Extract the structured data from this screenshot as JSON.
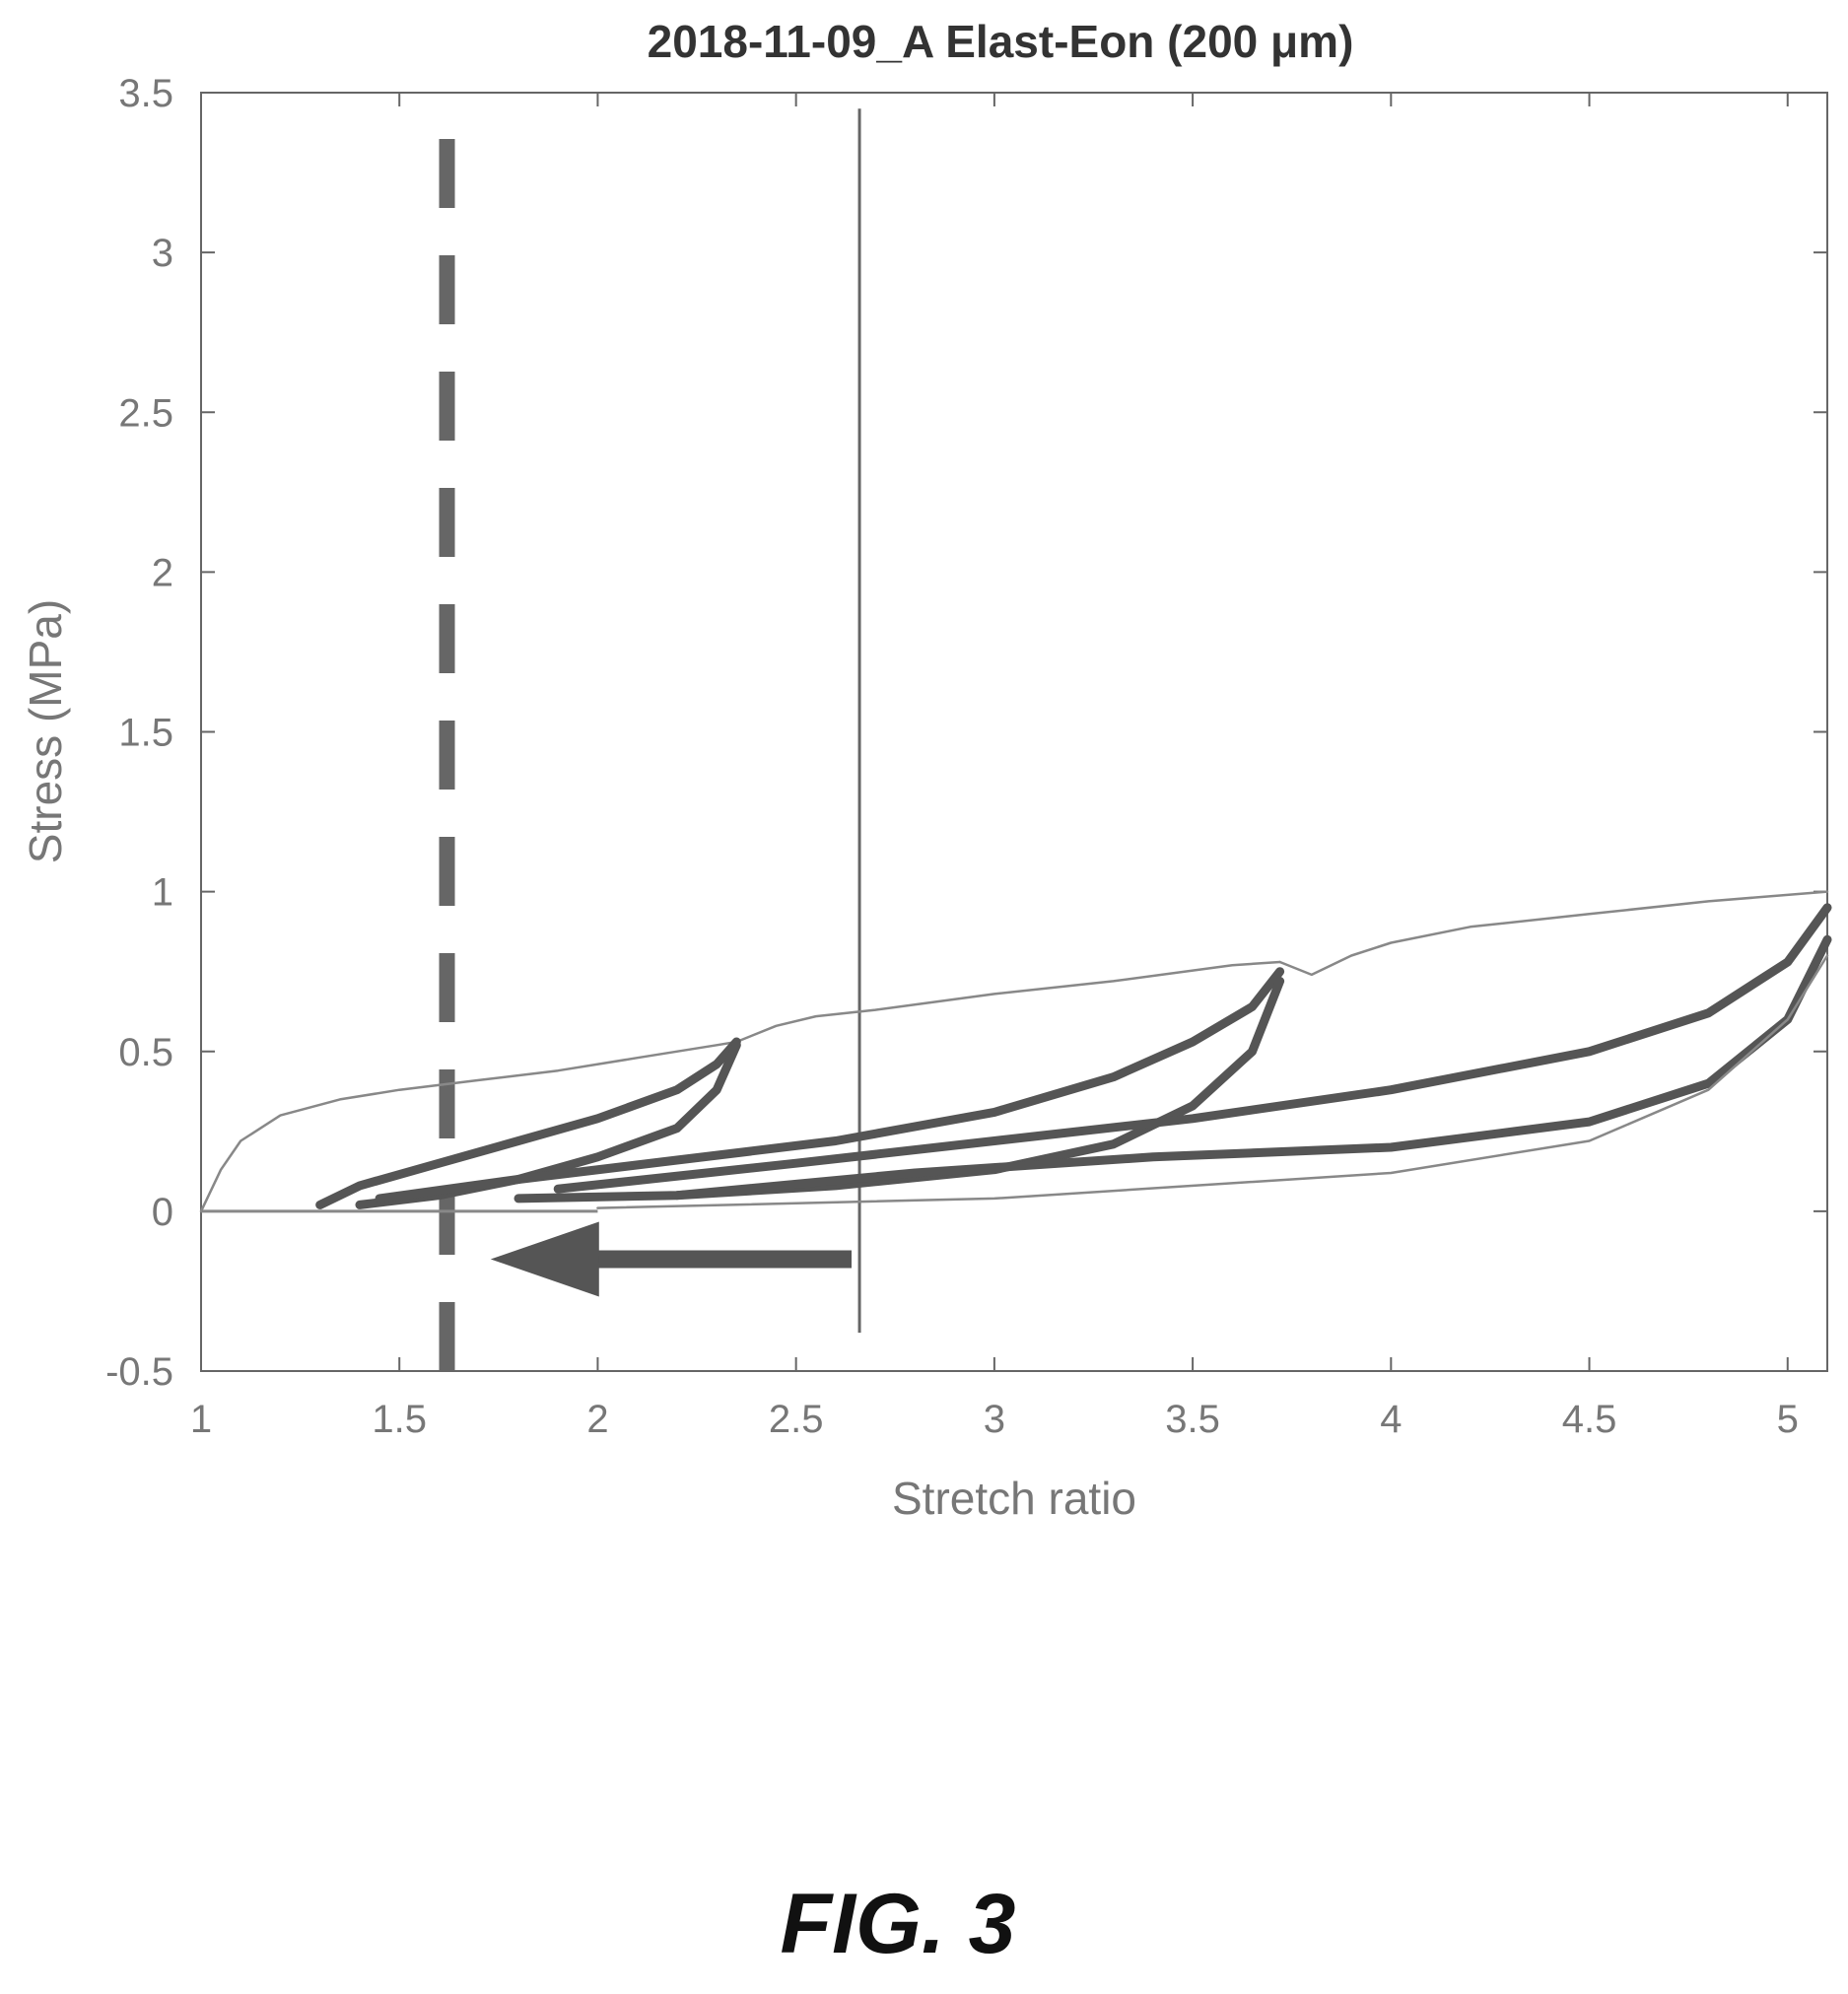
{
  "chart_data": {
    "type": "line",
    "title": "2018-11-09_A Elast-Eon (200 μm)",
    "xlabel": "Stretch ratio",
    "ylabel": "Stress (MPa)",
    "xlim": [
      1,
      5.1
    ],
    "ylim": [
      -0.5,
      3.5
    ],
    "xticks": [
      "1",
      "1.5",
      "2",
      "2.5",
      "3",
      "3.5",
      "4",
      "4.5",
      "5"
    ],
    "yticks": [
      "-0.5",
      "0",
      "0.5",
      "1",
      "1.5",
      "2",
      "2.5",
      "3",
      "3.5"
    ],
    "grid": false,
    "series": [
      {
        "style": "thin",
        "x": [
          1,
          1.05,
          1.1,
          1.2,
          1.35,
          1.5,
          1.7,
          1.9,
          2.1,
          2.3,
          2.35
        ],
        "y": [
          0,
          0.13,
          0.22,
          0.3,
          0.35,
          0.38,
          0.41,
          0.44,
          0.48,
          0.52,
          0.53
        ]
      },
      {
        "style": "thin",
        "x": [
          2.35,
          2.45,
          2.55,
          2.7,
          3.0,
          3.3,
          3.6,
          3.72
        ],
        "y": [
          0.53,
          0.58,
          0.61,
          0.63,
          0.68,
          0.72,
          0.77,
          0.78
        ]
      },
      {
        "style": "thin",
        "x": [
          3.72,
          3.8,
          3.9,
          4.0,
          4.2,
          4.5,
          4.8,
          5.1
        ],
        "y": [
          0.78,
          0.74,
          0.8,
          0.84,
          0.89,
          0.93,
          0.97,
          1.0
        ]
      },
      {
        "style": "thick",
        "x": [
          1.3,
          1.4,
          1.6,
          1.8,
          2.0,
          2.2,
          2.3,
          2.35
        ],
        "y": [
          0.02,
          0.08,
          0.15,
          0.22,
          0.29,
          0.38,
          0.46,
          0.53
        ]
      },
      {
        "style": "thick",
        "x": [
          1.4,
          1.6,
          1.8,
          2.0,
          2.2,
          2.3,
          2.35
        ],
        "y": [
          0.02,
          0.05,
          0.1,
          0.17,
          0.26,
          0.38,
          0.52
        ]
      },
      {
        "style": "thick",
        "x": [
          1.45,
          1.8,
          2.2,
          2.6,
          3.0,
          3.3,
          3.5,
          3.65,
          3.72
        ],
        "y": [
          0.04,
          0.1,
          0.16,
          0.22,
          0.31,
          0.42,
          0.53,
          0.64,
          0.75
        ]
      },
      {
        "style": "thick",
        "x": [
          1.8,
          2.2,
          2.6,
          3.0,
          3.3,
          3.5,
          3.65,
          3.72
        ],
        "y": [
          0.04,
          0.05,
          0.08,
          0.13,
          0.21,
          0.33,
          0.5,
          0.72
        ]
      },
      {
        "style": "thick",
        "x": [
          1.9,
          2.5,
          3.0,
          3.5,
          4.0,
          4.5,
          4.8,
          5.0,
          5.1
        ],
        "y": [
          0.07,
          0.15,
          0.22,
          0.29,
          0.38,
          0.5,
          0.62,
          0.78,
          0.95
        ]
      },
      {
        "style": "thick",
        "x": [
          2.2,
          2.8,
          3.4,
          4.0,
          4.5,
          4.8,
          5.0,
          5.1
        ],
        "y": [
          0.05,
          0.12,
          0.17,
          0.2,
          0.28,
          0.4,
          0.6,
          0.85
        ]
      },
      {
        "style": "thin",
        "x": [
          2.0,
          3.0,
          4.0,
          4.5,
          4.8,
          5.0,
          5.1
        ],
        "y": [
          0.01,
          0.04,
          0.12,
          0.22,
          0.38,
          0.6,
          0.8
        ]
      }
    ],
    "vlines": [
      {
        "x": 1.62,
        "style": "dashed",
        "y": [
          -0.5,
          3.4
        ]
      },
      {
        "x": 2.66,
        "style": "solid",
        "y": [
          -0.38,
          3.45
        ]
      }
    ],
    "arrow": {
      "from": [
        2.64,
        -0.15
      ],
      "to": [
        1.73,
        -0.15
      ]
    },
    "figure_label": "FIG. 3"
  }
}
